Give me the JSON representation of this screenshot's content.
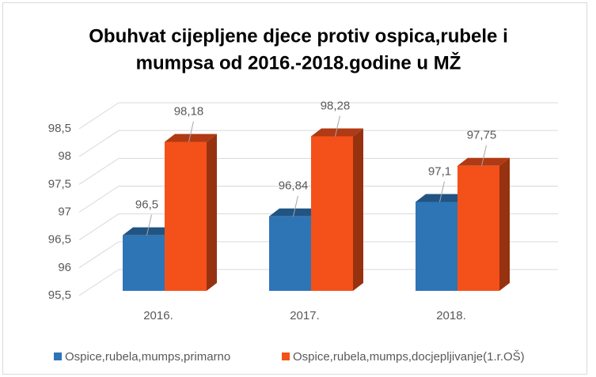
{
  "chart_data": {
    "type": "bar3d",
    "title": [
      "Obuhvat cijepljene djece protiv ospica,rubele i",
      "mumpsa od 2016.-2018.godine u MŽ"
    ],
    "categories": [
      "2016.",
      "2017.",
      "2018."
    ],
    "series": [
      {
        "name": "Ospice,rubela,mumps,primarno",
        "color": "#2e75b6",
        "values": [
          96.5,
          96.84,
          97.1
        ],
        "value_labels": [
          "96,5",
          "96,84",
          "97,1"
        ]
      },
      {
        "name": "Ospice,rubela,mumps,docjepljivanje(1.r.OŠ)",
        "color": "#f4511a",
        "values": [
          98.18,
          98.28,
          97.75
        ],
        "value_labels": [
          "98,18",
          "98,28",
          "97,75"
        ]
      }
    ],
    "ylim": [
      95.5,
      98.5
    ],
    "yticks": [
      {
        "value": 95.5,
        "label": "95,5"
      },
      96,
      {
        "value": 96.5,
        "label": "96,5"
      },
      97,
      {
        "value": 97.5,
        "label": "97,5"
      },
      98,
      {
        "value": 98.5,
        "label": "98,5"
      }
    ],
    "grid": true,
    "legend": "bottom"
  }
}
